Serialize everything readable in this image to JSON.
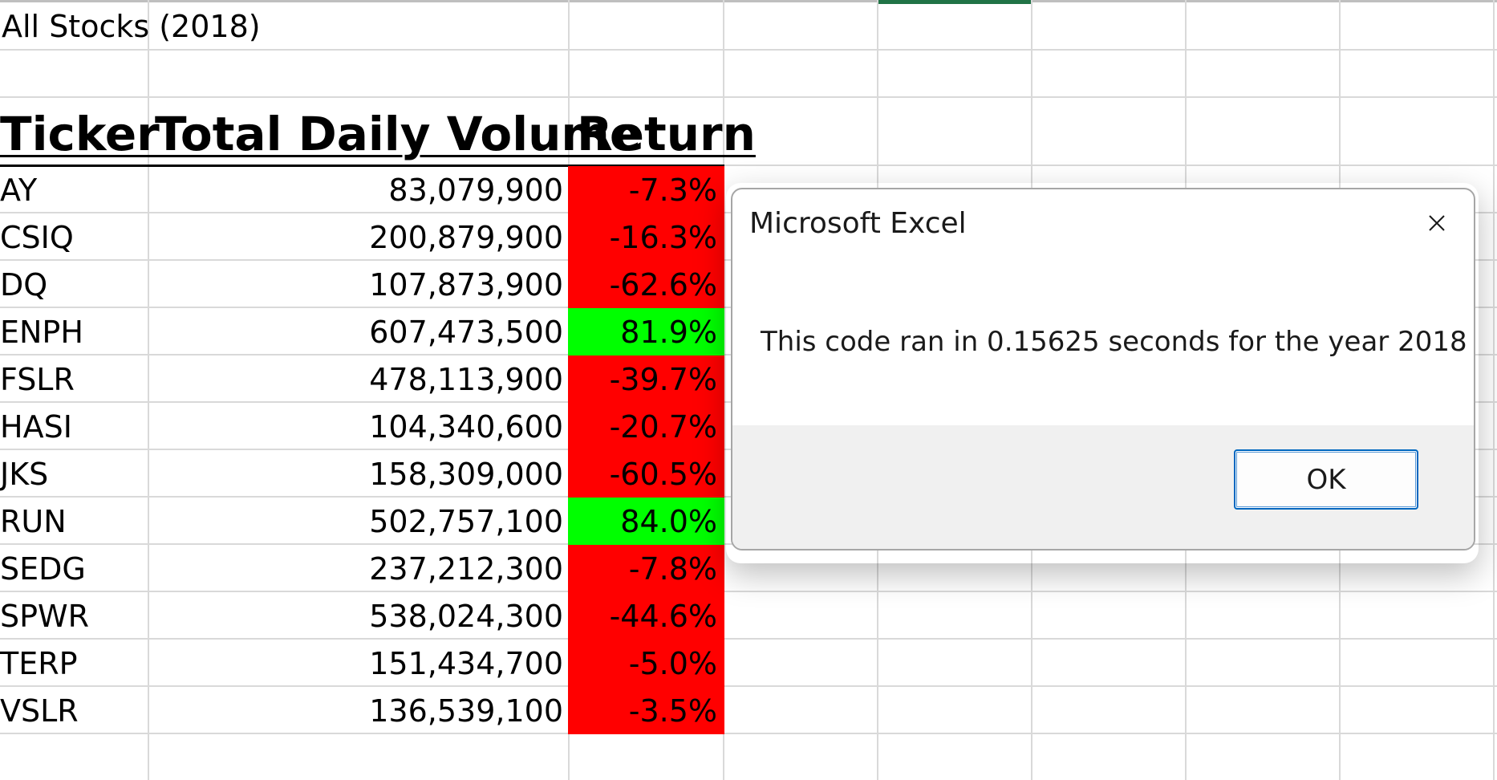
{
  "sheet": {
    "title": "All Stocks (2018)",
    "headers": {
      "ticker": "Ticker",
      "volume": "Total Daily Volume",
      "return": "Return"
    },
    "rows": [
      {
        "ticker": "AY",
        "volume": "83,079,900",
        "return": "-7.3%",
        "status": "negative"
      },
      {
        "ticker": "CSIQ",
        "volume": "200,879,900",
        "return": "-16.3%",
        "status": "negative"
      },
      {
        "ticker": "DQ",
        "volume": "107,873,900",
        "return": "-62.6%",
        "status": "negative"
      },
      {
        "ticker": "ENPH",
        "volume": "607,473,500",
        "return": "81.9%",
        "status": "positive"
      },
      {
        "ticker": "FSLR",
        "volume": "478,113,900",
        "return": "-39.7%",
        "status": "negative"
      },
      {
        "ticker": "HASI",
        "volume": "104,340,600",
        "return": "-20.7%",
        "status": "negative"
      },
      {
        "ticker": "JKS",
        "volume": "158,309,000",
        "return": "-60.5%",
        "status": "negative"
      },
      {
        "ticker": "RUN",
        "volume": "502,757,100",
        "return": "84.0%",
        "status": "positive"
      },
      {
        "ticker": "SEDG",
        "volume": "237,212,300",
        "return": "-7.8%",
        "status": "negative"
      },
      {
        "ticker": "SPWR",
        "volume": "538,024,300",
        "return": "-44.6%",
        "status": "negative"
      },
      {
        "ticker": "TERP",
        "volume": "151,434,700",
        "return": "-5.0%",
        "status": "negative"
      },
      {
        "ticker": "VSLR",
        "volume": "136,539,100",
        "return": "-3.5%",
        "status": "negative"
      }
    ]
  },
  "colors": {
    "negative": "#ff0000",
    "positive": "#00ff00",
    "active_column": "#217346",
    "button_border": "#0067c0"
  },
  "dialog": {
    "title": "Microsoft Excel",
    "close_icon": "close-icon",
    "message": "This code ran in 0.15625 seconds for the year 2018",
    "ok_label": "OK"
  }
}
